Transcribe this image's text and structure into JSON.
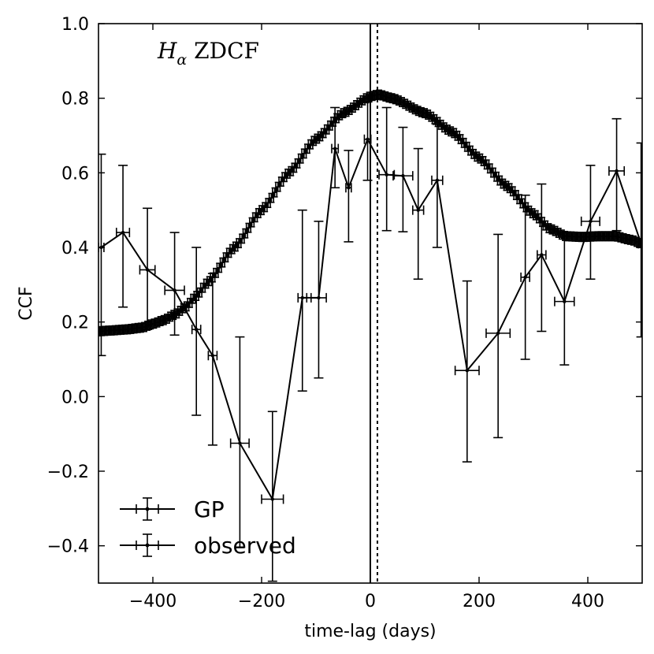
{
  "chart_data": {
    "type": "line",
    "title": "",
    "annotation": {
      "main": "H",
      "sub": "α",
      "suffix": " ZDCF"
    },
    "xlabel": "time-lag (days)",
    "ylabel": "CCF",
    "xlim": [
      -500,
      500
    ],
    "ylim": [
      -0.5,
      1.0
    ],
    "xticks": [
      -400,
      -200,
      0,
      200,
      400
    ],
    "xtick_labels": [
      "−400",
      "−200",
      "0",
      "200",
      "400"
    ],
    "yticks": [
      -0.4,
      -0.2,
      0.0,
      0.2,
      0.4,
      0.6,
      0.8,
      1.0
    ],
    "ytick_labels": [
      "−0.4",
      "−0.2",
      "0.0",
      "0.2",
      "0.4",
      "0.6",
      "0.8",
      "1.0"
    ],
    "grid": false,
    "legend_position": "lower-left",
    "vlines": [
      {
        "x": 0,
        "style": "solid"
      },
      {
        "x": 13,
        "style": "dotted"
      }
    ],
    "series": [
      {
        "name": "GP",
        "gp_knots": {
          "x": [
            -500,
            -480,
            -450,
            -420,
            -400,
            -380,
            -360,
            -340,
            -320,
            -300,
            -250,
            -200,
            -150,
            -100,
            -50,
            0,
            15,
            40,
            100,
            150,
            200,
            250,
            300,
            330,
            360,
            390,
            420,
            450,
            480,
            500
          ],
          "y": [
            0.175,
            0.177,
            0.18,
            0.185,
            0.195,
            0.205,
            0.22,
            0.24,
            0.27,
            0.305,
            0.4,
            0.5,
            0.6,
            0.69,
            0.76,
            0.805,
            0.81,
            0.8,
            0.76,
            0.71,
            0.64,
            0.565,
            0.49,
            0.45,
            0.43,
            0.428,
            0.43,
            0.43,
            0.42,
            0.41
          ]
        },
        "step": 6,
        "xerr": 4,
        "yerr": 0.012
      },
      {
        "name": "observed",
        "points": [
          {
            "x": -495,
            "y": 0.4,
            "xerr": 5,
            "yerr_low": 0.29,
            "yerr_high": 0.25
          },
          {
            "x": -455,
            "y": 0.44,
            "xerr": 12,
            "yerr_low": 0.2,
            "yerr_high": 0.18
          },
          {
            "x": -410,
            "y": 0.34,
            "xerr": 14,
            "yerr_low": 0.16,
            "yerr_high": 0.165
          },
          {
            "x": -360,
            "y": 0.285,
            "xerr": 18,
            "yerr_low": 0.12,
            "yerr_high": 0.155
          },
          {
            "x": -320,
            "y": 0.18,
            "xerr": 8,
            "yerr_low": 0.23,
            "yerr_high": 0.22
          },
          {
            "x": -290,
            "y": 0.11,
            "xerr": 8,
            "yerr_low": 0.24,
            "yerr_high": 0.22
          },
          {
            "x": -240,
            "y": -0.125,
            "xerr": 17,
            "yerr_low": 0.28,
            "yerr_high": 0.285
          },
          {
            "x": -180,
            "y": -0.275,
            "xerr": 20,
            "yerr_low": 0.22,
            "yerr_high": 0.235
          },
          {
            "x": -125,
            "y": 0.265,
            "xerr": 8,
            "yerr_low": 0.25,
            "yerr_high": 0.235
          },
          {
            "x": -95,
            "y": 0.265,
            "xerr": 14,
            "yerr_low": 0.215,
            "yerr_high": 0.205
          },
          {
            "x": -65,
            "y": 0.665,
            "xerr": 6,
            "yerr_low": 0.105,
            "yerr_high": 0.11
          },
          {
            "x": -40,
            "y": 0.56,
            "xerr": 5,
            "yerr_low": 0.145,
            "yerr_high": 0.1
          },
          {
            "x": -5,
            "y": 0.69,
            "xerr": 6,
            "yerr_low": 0.11,
            "yerr_high": 0.1
          },
          {
            "x": 30,
            "y": 0.595,
            "xerr": 14,
            "yerr_low": 0.15,
            "yerr_high": 0.18
          },
          {
            "x": 60,
            "y": 0.592,
            "xerr": 18,
            "yerr_low": 0.15,
            "yerr_high": 0.13
          },
          {
            "x": 88,
            "y": 0.5,
            "xerr": 10,
            "yerr_low": 0.185,
            "yerr_high": 0.165
          },
          {
            "x": 123,
            "y": 0.58,
            "xerr": 10,
            "yerr_low": 0.18,
            "yerr_high": 0.15
          },
          {
            "x": 178,
            "y": 0.07,
            "xerr": 22,
            "yerr_low": 0.245,
            "yerr_high": 0.24
          },
          {
            "x": 235,
            "y": 0.17,
            "xerr": 22,
            "yerr_low": 0.28,
            "yerr_high": 0.265
          },
          {
            "x": 285,
            "y": 0.32,
            "xerr": 8,
            "yerr_low": 0.22,
            "yerr_high": 0.22
          },
          {
            "x": 315,
            "y": 0.38,
            "xerr": 8,
            "yerr_low": 0.205,
            "yerr_high": 0.19
          },
          {
            "x": 357,
            "y": 0.255,
            "xerr": 18,
            "yerr_low": 0.17,
            "yerr_high": 0.185
          },
          {
            "x": 405,
            "y": 0.47,
            "xerr": 17,
            "yerr_low": 0.155,
            "yerr_high": 0.15
          },
          {
            "x": 453,
            "y": 0.605,
            "xerr": 14,
            "yerr_low": 0.16,
            "yerr_high": 0.14
          },
          {
            "x": 498,
            "y": 0.41,
            "xerr": 5,
            "yerr_low": 0.25,
            "yerr_high": 0.27
          }
        ]
      }
    ]
  }
}
